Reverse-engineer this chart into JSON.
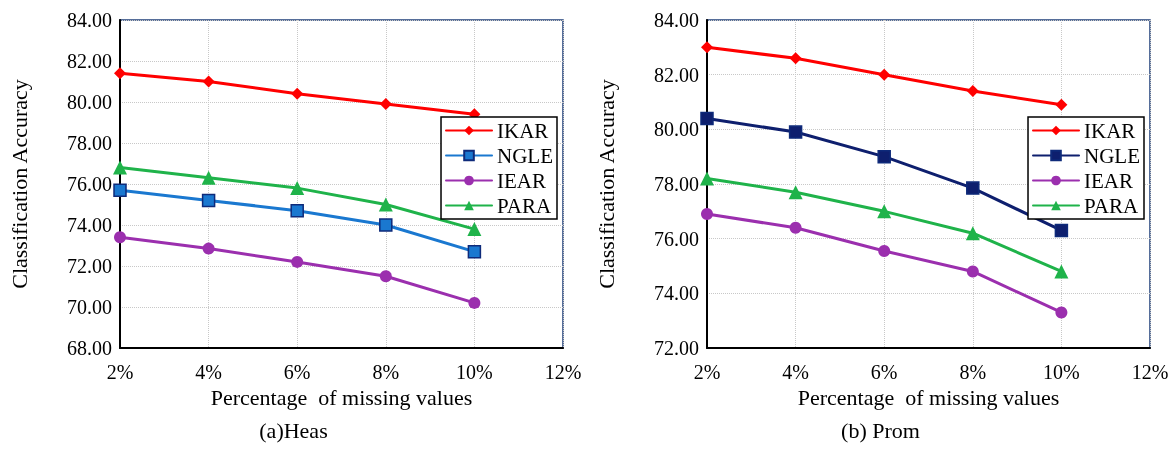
{
  "chart_data": [
    {
      "type": "line",
      "title": "(a)Heas",
      "xlabel": "Percentage  of missing values",
      "ylabel": "Classification Accuracy",
      "x": [
        2,
        4,
        6,
        8,
        10
      ],
      "series": [
        {
          "name": "IKAR",
          "color": "#ff0000",
          "marker": "diamond",
          "values": [
            81.4,
            81.0,
            80.4,
            79.9,
            79.4
          ]
        },
        {
          "name": "NGLE",
          "color": "#1a78d0",
          "marker": "square",
          "values": [
            75.7,
            75.2,
            74.7,
            74.0,
            72.7
          ]
        },
        {
          "name": "IEAR",
          "color": "#9b2fae",
          "marker": "circle",
          "values": [
            73.4,
            72.85,
            72.2,
            71.5,
            70.2
          ]
        },
        {
          "name": "PARA",
          "color": "#1fb34a",
          "marker": "triangle",
          "values": [
            76.8,
            76.3,
            75.8,
            75.0,
            73.8
          ]
        }
      ],
      "xlim": [
        2,
        12
      ],
      "xticks": [
        {
          "value": 2,
          "label": "2%"
        },
        {
          "value": 4,
          "label": "4%"
        },
        {
          "value": 6,
          "label": "6%"
        },
        {
          "value": 8,
          "label": "8%"
        },
        {
          "value": 10,
          "label": "10%"
        },
        {
          "value": 12,
          "label": "12%"
        }
      ],
      "ylim": [
        68,
        84
      ],
      "yticks": [
        {
          "value": 68,
          "label": "68.00"
        },
        {
          "value": 70,
          "label": "70.00"
        },
        {
          "value": 72,
          "label": "72.00"
        },
        {
          "value": 74,
          "label": "74.00"
        },
        {
          "value": 76,
          "label": "76.00"
        },
        {
          "value": 78,
          "label": "78.00"
        },
        {
          "value": 80,
          "label": "80.00"
        },
        {
          "value": 82,
          "label": "82.00"
        },
        {
          "value": 84,
          "label": "84.00"
        }
      ],
      "grid": true,
      "legend": "right",
      "line_style": "solid"
    },
    {
      "type": "line",
      "title": "(b) Prom",
      "xlabel": "Percentage  of missing values",
      "ylabel": "Classification Accuracy",
      "x": [
        2,
        4,
        6,
        8,
        10
      ],
      "series": [
        {
          "name": "IKAR",
          "color": "#ff0000",
          "marker": "diamond",
          "values": [
            83.0,
            82.6,
            82.0,
            81.4,
            80.9
          ]
        },
        {
          "name": "NGLE",
          "color": "#0e1f6e",
          "marker": "square",
          "values": [
            80.4,
            79.9,
            79.0,
            77.85,
            76.3
          ]
        },
        {
          "name": "IEAR",
          "color": "#9b2fae",
          "marker": "circle",
          "values": [
            76.9,
            76.4,
            75.55,
            74.8,
            73.3
          ]
        },
        {
          "name": "PARA",
          "color": "#1fb34a",
          "marker": "triangle",
          "values": [
            78.2,
            77.7,
            77.0,
            76.2,
            74.8
          ]
        }
      ],
      "xlim": [
        2,
        12
      ],
      "xticks": [
        {
          "value": 2,
          "label": "2%"
        },
        {
          "value": 4,
          "label": "4%"
        },
        {
          "value": 6,
          "label": "6%"
        },
        {
          "value": 8,
          "label": "8%"
        },
        {
          "value": 10,
          "label": "10%"
        },
        {
          "value": 12,
          "label": "12%"
        }
      ],
      "ylim": [
        72,
        84
      ],
      "yticks": [
        {
          "value": 72,
          "label": "72.00"
        },
        {
          "value": 74,
          "label": "74.00"
        },
        {
          "value": 76,
          "label": "76.00"
        },
        {
          "value": 78,
          "label": "78.00"
        },
        {
          "value": 80,
          "label": "80.00"
        },
        {
          "value": 82,
          "label": "82.00"
        },
        {
          "value": 84,
          "label": "84.00"
        }
      ],
      "grid": true,
      "legend": "right",
      "line_style": "solid"
    }
  ]
}
